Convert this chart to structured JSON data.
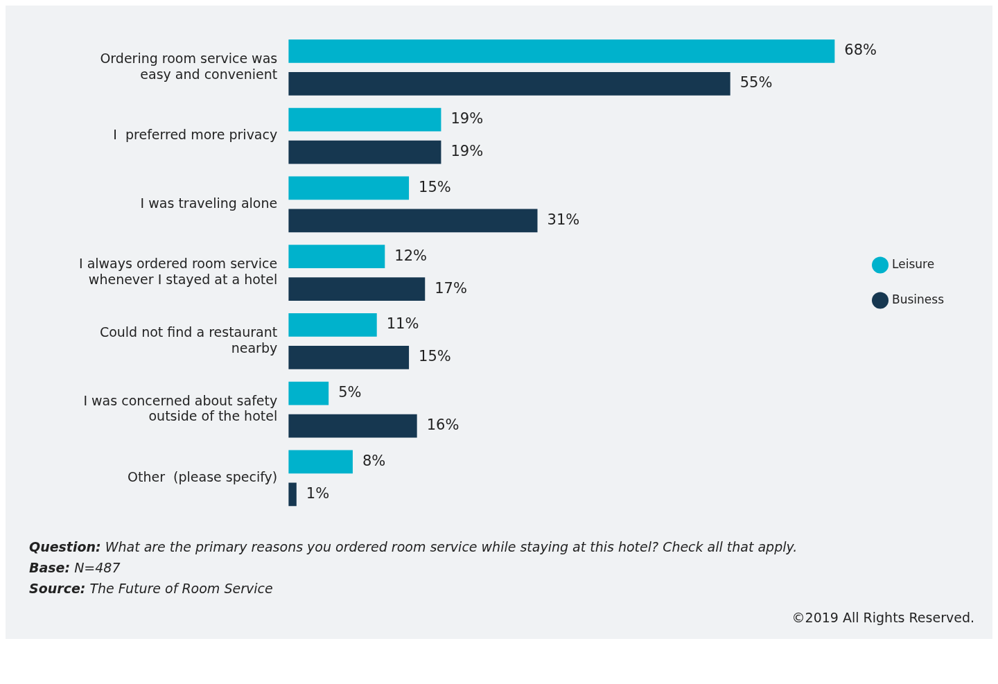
{
  "chart_data": {
    "type": "bar",
    "orientation": "horizontal",
    "categories": [
      "Ordering room service was easy and convenient",
      "I  preferred more privacy",
      "I was traveling alone",
      "I always ordered room service whenever I stayed at a hotel",
      "Could not find a restaurant nearby",
      "I was concerned about safety outside of the hotel",
      "Other  (please specify)"
    ],
    "series": [
      {
        "name": "Leisure",
        "color": "#00b2cc",
        "values": [
          68,
          19,
          15,
          12,
          11,
          5,
          8
        ],
        "value_labels": [
          "68%",
          "19%",
          "15%",
          "12%",
          "11%",
          "5%",
          "8%"
        ]
      },
      {
        "name": "Business",
        "color": "#163750",
        "values": [
          55,
          19,
          31,
          17,
          15,
          16,
          1
        ],
        "value_labels": [
          "55%",
          "19%",
          "31%",
          "17%",
          "15%",
          "16%",
          "1%"
        ]
      }
    ],
    "legend": "right",
    "grid": false,
    "annotations": [
      "Question: What are the primary reasons you ordered room service while staying at this hotel? Check all that apply.",
      "Base: N=487",
      "Source: The Future of Room Service",
      "©2019 All Rights Reserved."
    ]
  }
}
